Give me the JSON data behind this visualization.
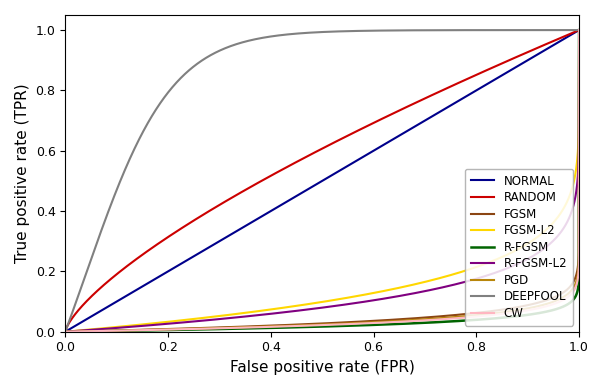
{
  "title": "",
  "xlabel": "False positive rate (FPR)",
  "ylabel": "True positive rate (TPR)",
  "xlim": [
    0.0,
    1.0
  ],
  "ylim": [
    0.0,
    1.05
  ],
  "curves": [
    {
      "name": "NORMAL",
      "color": "#00008B",
      "linewidth": 1.5,
      "alpha": 1.0,
      "power": 1.0,
      "shape": "diagonal"
    },
    {
      "name": "RANDOM",
      "color": "#CC0000",
      "linewidth": 1.5,
      "alpha": 1.0,
      "power": 0.72,
      "shape": "power"
    },
    {
      "name": "FGSM",
      "color": "#8B4513",
      "linewidth": 1.5,
      "alpha": 1.0,
      "power": 0.04,
      "shape": "steep"
    },
    {
      "name": "FGSM-L2",
      "color": "#FFD700",
      "linewidth": 1.5,
      "alpha": 1.0,
      "power": 0.15,
      "shape": "steep"
    },
    {
      "name": "R-FGSM",
      "color": "#006400",
      "linewidth": 1.8,
      "alpha": 1.0,
      "power": 0.025,
      "shape": "steep"
    },
    {
      "name": "R-FGSM-L2",
      "color": "#800080",
      "linewidth": 1.5,
      "alpha": 1.0,
      "power": 0.12,
      "shape": "steep"
    },
    {
      "name": "PGD",
      "color": "#B8860B",
      "linewidth": 1.5,
      "alpha": 1.0,
      "power": 0.035,
      "shape": "steep"
    },
    {
      "name": "DEEPFOOL",
      "color": "#808080",
      "linewidth": 1.5,
      "alpha": 1.0,
      "power": 0.35,
      "shape": "deepfool"
    },
    {
      "name": "CW",
      "color": "#FFB6C1",
      "linewidth": 1.5,
      "alpha": 1.0,
      "power": 0.032,
      "shape": "steep"
    }
  ],
  "legend_loc": "lower right",
  "legend_fontsize": 8.5,
  "axis_fontsize": 11,
  "tick_fontsize": 9,
  "figsize": [
    6.04,
    3.9
  ],
  "dpi": 100
}
